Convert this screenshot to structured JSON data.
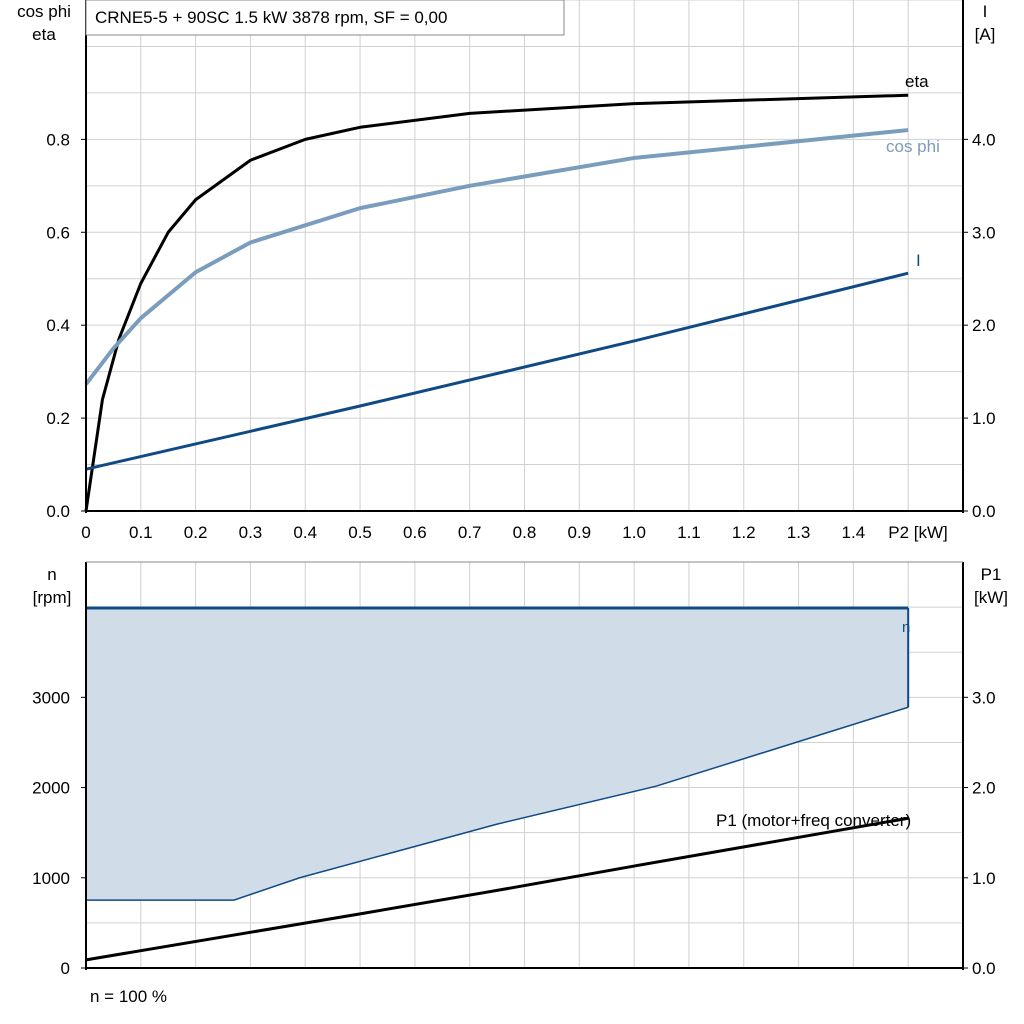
{
  "title": "CRNE5-5 + 90SC   1.5 kW   3878 rpm, SF = 0,00",
  "footer": "n = 100 %",
  "colors": {
    "eta": "#000000",
    "cosphi": "#7a9dbd",
    "I": "#0f4a85",
    "n": "#0f4a85",
    "n_fill": "#d0dce8",
    "P1": "#000000",
    "grid": "#d0d0d0"
  },
  "chart_data": [
    {
      "type": "line",
      "xlabel": "P2 [kW]",
      "ylabel_left": [
        "cos phi",
        "eta"
      ],
      "ylabel_right": [
        "I",
        "[A]"
      ],
      "xlim": [
        0,
        1.6
      ],
      "ylim_left": [
        0,
        1.1
      ],
      "ylim_right": [
        0,
        5.5
      ],
      "xticks": [
        "0",
        "0.1",
        "0.2",
        "0.3",
        "0.4",
        "0.5",
        "0.6",
        "0.7",
        "0.8",
        "0.9",
        "1.0",
        "1.1",
        "1.2",
        "1.3",
        "1.4"
      ],
      "yticks_left": [
        "0.0",
        "0.2",
        "0.4",
        "0.6",
        "0.8"
      ],
      "yticks_right": [
        "0.0",
        "1.0",
        "2.0",
        "3.0",
        "4.0"
      ],
      "grid": true,
      "series": [
        {
          "name": "eta",
          "axis": "left",
          "x": [
            0,
            0.03,
            0.06,
            0.1,
            0.15,
            0.2,
            0.3,
            0.4,
            0.5,
            0.7,
            1.0,
            1.5
          ],
          "y": [
            0,
            0.24,
            0.37,
            0.49,
            0.6,
            0.67,
            0.755,
            0.8,
            0.826,
            0.856,
            0.877,
            0.895
          ]
        },
        {
          "name": "cos phi",
          "axis": "left",
          "x": [
            0,
            0.05,
            0.1,
            0.2,
            0.3,
            0.5,
            0.7,
            1.0,
            1.5
          ],
          "y": [
            0.273,
            0.35,
            0.415,
            0.514,
            0.578,
            0.652,
            0.7,
            0.76,
            0.82
          ]
        },
        {
          "name": "I",
          "axis": "right",
          "x": [
            0,
            0.5,
            1.0,
            1.5
          ],
          "y": [
            0.45,
            1.13,
            1.83,
            2.56
          ]
        }
      ]
    },
    {
      "type": "area",
      "ylabel_left": [
        "n",
        "[rpm]"
      ],
      "ylabel_right": [
        "P1",
        "[kW]"
      ],
      "xlim": [
        0,
        1.6
      ],
      "ylim_left": [
        0,
        4500
      ],
      "ylim_right": [
        0,
        4.5
      ],
      "yticks_left": [
        "0",
        "1000",
        "2000",
        "3000"
      ],
      "yticks_right": [
        "0.0",
        "1.0",
        "2.0",
        "3.0"
      ],
      "grid": true,
      "series": [
        {
          "name": "n",
          "axis": "left",
          "upper": {
            "x": [
              0,
              1.5
            ],
            "y": [
              3990,
              3990
            ]
          },
          "lower": {
            "x": [
              0,
              0.27,
              0.39,
              0.75,
              1.04,
              1.5
            ],
            "y": [
              753,
              753,
              1000,
              1595,
              2015,
              2890
            ]
          }
        },
        {
          "name": "P1 (motor+freq converter)",
          "axis": "right",
          "x": [
            0,
            0.5,
            0.75,
            1.0,
            1.5
          ],
          "y": [
            0.09,
            0.6,
            0.86,
            1.13,
            1.66
          ]
        }
      ]
    }
  ]
}
